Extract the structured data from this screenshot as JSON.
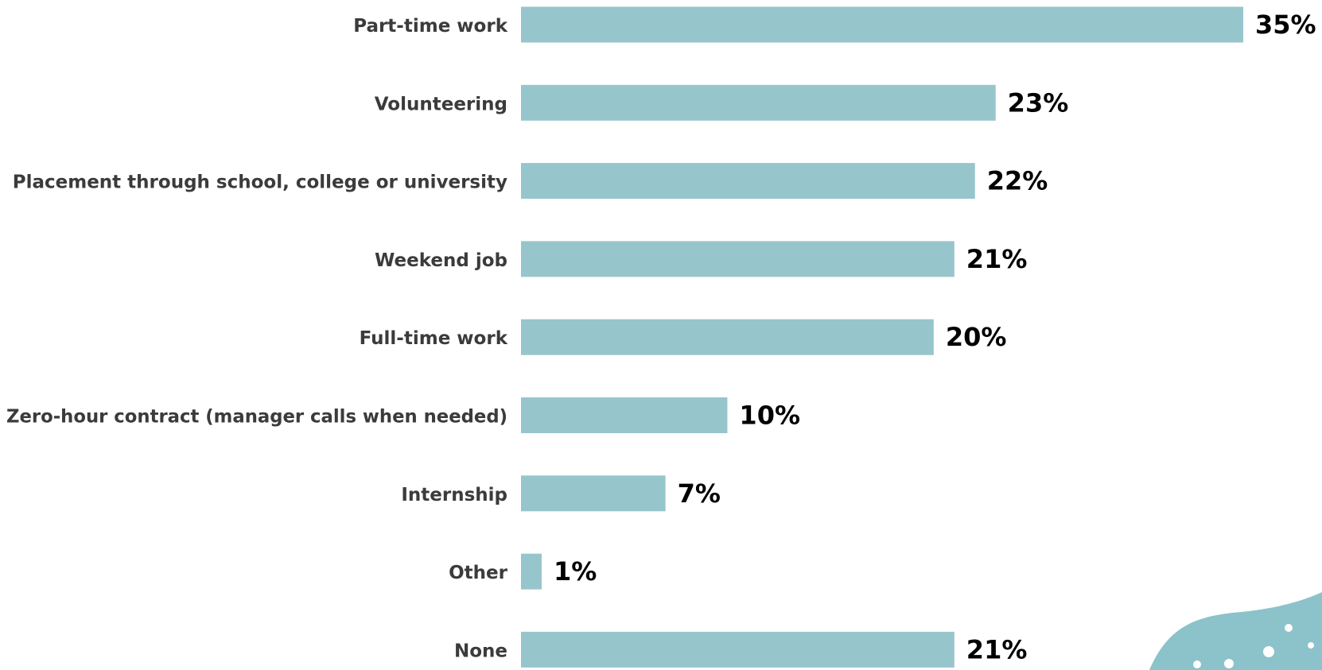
{
  "chart_data": {
    "type": "bar",
    "orientation": "horizontal",
    "categories": [
      "Part-time work",
      "Volunteering",
      "Placement through school, college or university",
      "Weekend job",
      "Full-time work",
      "Zero-hour contract (manager calls when needed)",
      "Internship",
      "Other",
      "None"
    ],
    "values": [
      35,
      23,
      22,
      21,
      20,
      10,
      7,
      1,
      21
    ],
    "value_labels": [
      "35%",
      "23%",
      "22%",
      "21%",
      "20%",
      "10%",
      "7%",
      "1%",
      "21%"
    ],
    "unit": "%",
    "xlim": [
      0,
      35
    ],
    "grid": false,
    "legend": "none"
  },
  "colors": {
    "bar": "#97c5cc",
    "category_text": "#3b3b3b",
    "value_text": "#000000",
    "decoration": "#8cc2ca",
    "decoration_dots": "#ffffff"
  }
}
